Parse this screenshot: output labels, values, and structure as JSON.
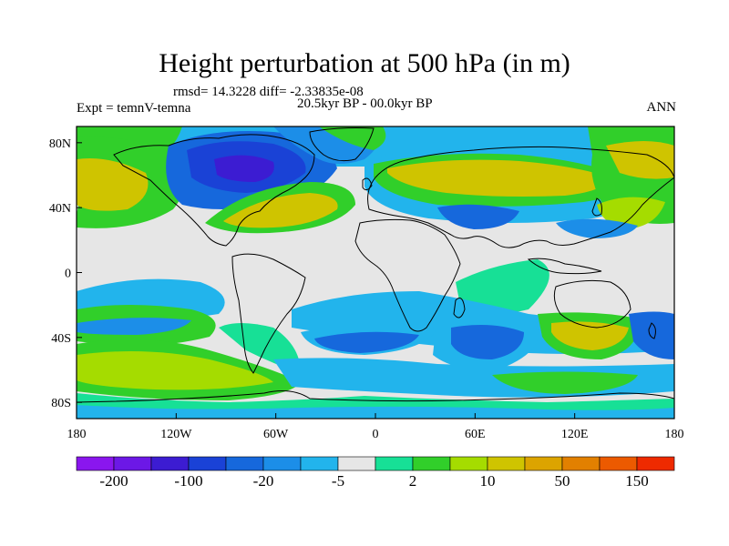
{
  "title": "Height perturbation at 500 hPa (in m)",
  "stats_text": "rmsd= 14.3228 diff= -2.33835e-08",
  "experiment_text": "Expt = temnV-temna",
  "period_text": "20.5kyr BP - 00.0kyr BP",
  "season_text": "ANN",
  "map": {
    "lon_range": [
      -180,
      180
    ],
    "lat_range": [
      -90,
      90
    ],
    "lon_ticks": [
      {
        "value": -180,
        "label": "180"
      },
      {
        "value": -120,
        "label": "120W"
      },
      {
        "value": -60,
        "label": "60W"
      },
      {
        "value": 0,
        "label": "0"
      },
      {
        "value": 60,
        "label": "60E"
      },
      {
        "value": 120,
        "label": "120E"
      },
      {
        "value": 180,
        "label": "180"
      }
    ],
    "lat_ticks": [
      {
        "value": 80,
        "label": "80N"
      },
      {
        "value": 40,
        "label": "40N"
      },
      {
        "value": 0,
        "label": "0"
      },
      {
        "value": -40,
        "label": "40S"
      },
      {
        "value": -80,
        "label": "80S"
      }
    ],
    "background_color": "#e6e6e6",
    "coastline_color": "#000000"
  },
  "colorbar": {
    "colors": [
      "#8a16ee",
      "#6c18e6",
      "#3c1cd2",
      "#1a42d6",
      "#1668dc",
      "#1c8ee8",
      "#22b4ec",
      "#e6e6e6",
      "#17e096",
      "#31cf2a",
      "#a5dc00",
      "#cfc400",
      "#dca400",
      "#e28000",
      "#ec5a00",
      "#ee2a00"
    ],
    "labels": [
      {
        "after_box": 1,
        "text": "-200"
      },
      {
        "after_box": 3,
        "text": "-100"
      },
      {
        "after_box": 5,
        "text": "-20"
      },
      {
        "after_box": 7,
        "text": "-5"
      },
      {
        "after_box": 9,
        "text": "2"
      },
      {
        "after_box": 11,
        "text": "10"
      },
      {
        "after_box": 13,
        "text": "50"
      },
      {
        "after_box": 15,
        "text": "150"
      }
    ]
  },
  "field_colors": {
    "strong_negative": "#1a42d6",
    "negative": "#1668dc",
    "weak_negative": "#1c8ee8",
    "very_weak_negative": "#22b4ec",
    "neutral": "#e6e6e6",
    "weak_positive": "#17e096",
    "positive": "#31cf2a",
    "moderate_positive": "#a5dc00",
    "strong_positive": "#cfc400",
    "very_strong_positive": "#dca400",
    "extreme_negative": "#3c1cd2"
  }
}
